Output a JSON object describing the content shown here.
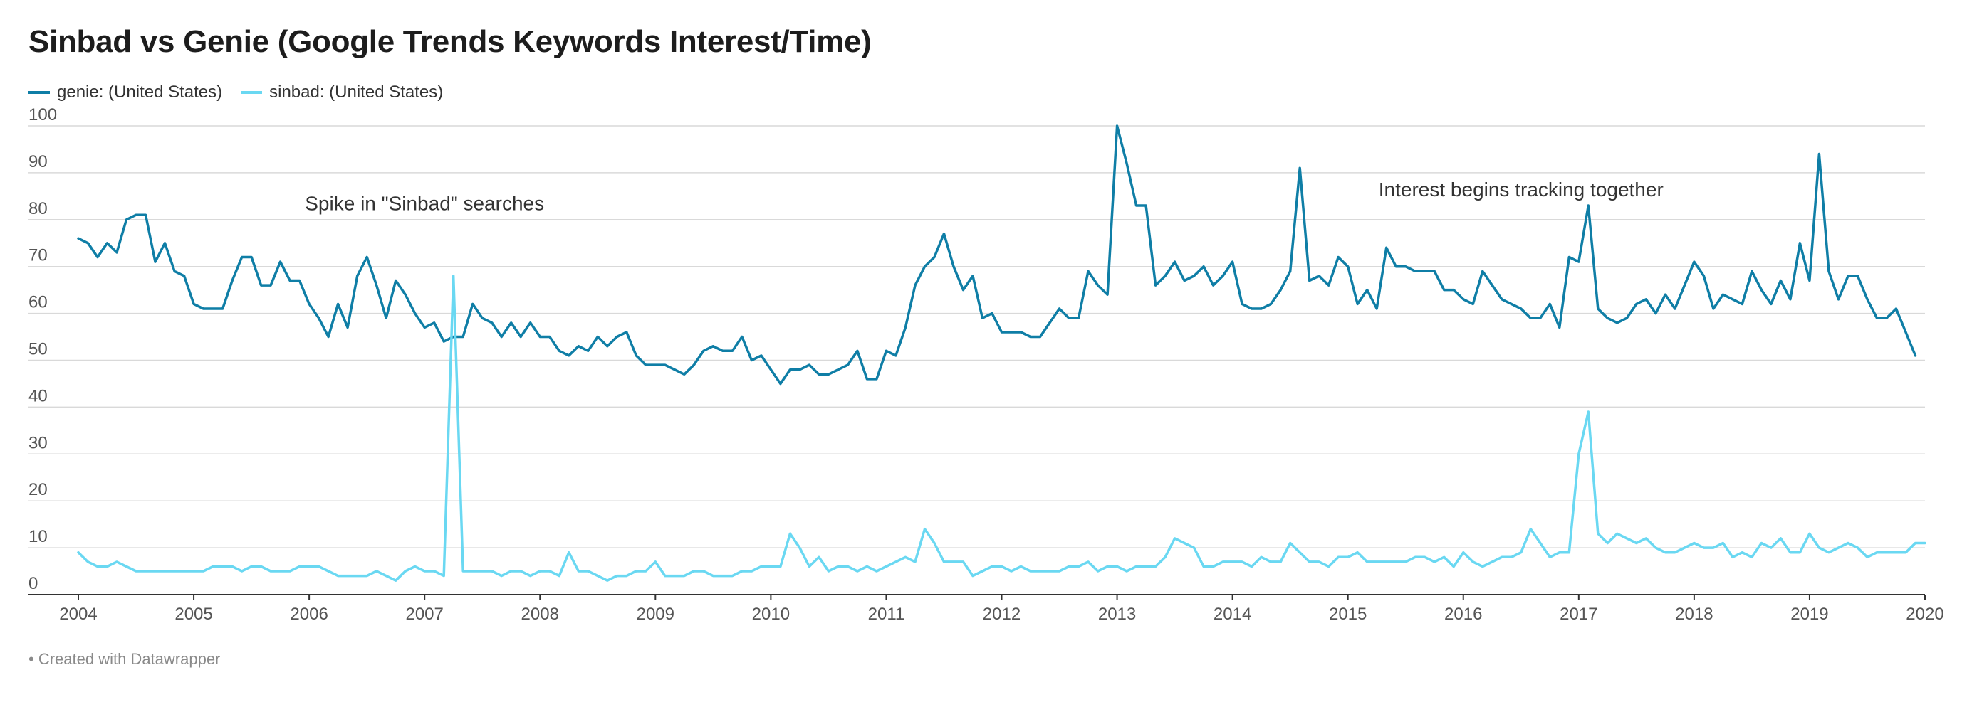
{
  "colors": {
    "genie": "#0f7ea6",
    "sinbad": "#6ad8f2",
    "grid": "#d9d9d9",
    "axis": "#333333"
  },
  "footer": "• Created with Datawrapper",
  "chart_data": {
    "type": "line",
    "title": "Sinbad vs Genie (Google Trends Keywords Interest/Time)",
    "xlabel": "",
    "ylabel": "",
    "xlim": [
      2004,
      2020
    ],
    "ylim": [
      0,
      100
    ],
    "yticks": [
      0,
      10,
      20,
      30,
      40,
      50,
      60,
      70,
      80,
      90,
      100
    ],
    "xticks": [
      "2004",
      "2005",
      "2006",
      "2007",
      "2008",
      "2009",
      "2010",
      "2011",
      "2012",
      "2013",
      "2014",
      "2015",
      "2016",
      "2017",
      "2018",
      "2019",
      "2020"
    ],
    "grid": "horizontal",
    "legend_position": "top-left",
    "annotations": [
      {
        "text": "Spike in \"Sinbad\" searches",
        "x": 2007.0,
        "y": 82
      },
      {
        "text": "Interest begins tracking together",
        "x": 2016.5,
        "y": 85
      }
    ],
    "series": [
      {
        "name": "genie: (United States)",
        "x_start": 2004,
        "step": "month",
        "values": [
          76,
          75,
          72,
          75,
          73,
          80,
          81,
          81,
          71,
          75,
          69,
          68,
          62,
          61,
          61,
          61,
          67,
          72,
          72,
          66,
          66,
          71,
          67,
          67,
          62,
          59,
          55,
          62,
          57,
          68,
          72,
          66,
          59,
          67,
          64,
          60,
          57,
          58,
          54,
          55,
          55,
          62,
          59,
          58,
          55,
          58,
          55,
          58,
          55,
          55,
          52,
          51,
          53,
          52,
          55,
          53,
          55,
          56,
          51,
          49,
          49,
          49,
          48,
          47,
          49,
          52,
          53,
          52,
          52,
          55,
          50,
          51,
          48,
          45,
          48,
          48,
          49,
          47,
          47,
          48,
          49,
          52,
          46,
          46,
          52,
          51,
          57,
          66,
          70,
          72,
          77,
          70,
          65,
          68,
          59,
          60,
          56,
          56,
          56,
          55,
          55,
          58,
          61,
          59,
          59,
          69,
          66,
          64,
          100,
          92,
          83,
          83,
          66,
          68,
          71,
          67,
          68,
          70,
          66,
          68,
          71,
          62,
          61,
          61,
          62,
          65,
          69,
          91,
          67,
          68,
          66,
          72,
          70,
          62,
          65,
          61,
          74,
          70,
          70,
          69,
          69,
          69,
          65,
          65,
          63,
          62,
          69,
          66,
          63,
          62,
          61,
          59,
          59,
          62,
          57,
          72,
          71,
          83,
          61,
          59,
          58,
          59,
          62,
          63,
          60,
          64,
          61,
          66,
          71,
          68,
          61,
          64,
          63,
          62,
          69,
          65,
          62,
          67,
          63,
          75,
          67,
          94,
          69,
          63,
          68,
          68,
          63,
          59,
          59,
          61,
          56,
          51
        ]
      },
      {
        "name": "sinbad: (United States)",
        "x_start": 2004,
        "step": "month",
        "values": [
          9,
          7,
          6,
          6,
          7,
          6,
          5,
          5,
          5,
          5,
          5,
          5,
          5,
          5,
          6,
          6,
          6,
          5,
          6,
          6,
          5,
          5,
          5,
          6,
          6,
          6,
          5,
          4,
          4,
          4,
          4,
          5,
          4,
          3,
          5,
          6,
          5,
          5,
          4,
          68,
          5,
          5,
          5,
          5,
          4,
          5,
          5,
          4,
          5,
          5,
          4,
          9,
          5,
          5,
          4,
          3,
          4,
          4,
          5,
          5,
          7,
          4,
          4,
          4,
          5,
          5,
          4,
          4,
          4,
          5,
          5,
          6,
          6,
          6,
          13,
          10,
          6,
          8,
          5,
          6,
          6,
          5,
          6,
          5,
          6,
          7,
          8,
          7,
          14,
          11,
          7,
          7,
          7,
          4,
          5,
          6,
          6,
          5,
          6,
          5,
          5,
          5,
          5,
          6,
          6,
          7,
          5,
          6,
          6,
          5,
          6,
          6,
          6,
          8,
          12,
          11,
          10,
          6,
          6,
          7,
          7,
          7,
          6,
          8,
          7,
          7,
          11,
          9,
          7,
          7,
          6,
          8,
          8,
          9,
          7,
          7,
          7,
          7,
          7,
          8,
          8,
          7,
          8,
          6,
          9,
          7,
          6,
          7,
          8,
          8,
          9,
          14,
          11,
          8,
          9,
          9,
          30,
          39,
          13,
          11,
          13,
          12,
          11,
          12,
          10,
          9,
          9,
          10,
          11,
          10,
          10,
          11,
          8,
          9,
          8,
          11,
          10,
          12,
          9,
          9,
          13,
          10,
          9,
          10,
          11,
          10,
          8,
          9,
          9,
          9,
          9,
          11,
          11
        ]
      }
    ]
  }
}
